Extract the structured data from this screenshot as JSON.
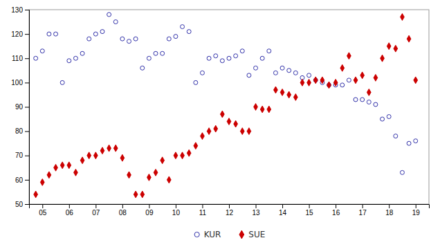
{
  "chart_data": {
    "type": "scatter",
    "x": [
      2004.75,
      2005,
      2005.25,
      2005.5,
      2005.75,
      2006,
      2006.25,
      2006.5,
      2006.75,
      2007,
      2007.25,
      2007.5,
      2007.75,
      2008,
      2008.25,
      2008.5,
      2008.75,
      2009,
      2009.25,
      2009.5,
      2009.75,
      2010,
      2010.25,
      2010.5,
      2010.75,
      2011,
      2011.25,
      2011.5,
      2011.75,
      2012,
      2012.25,
      2012.5,
      2012.75,
      2013,
      2013.25,
      2013.5,
      2013.75,
      2014,
      2014.25,
      2014.5,
      2014.75,
      2015,
      2015.25,
      2015.5,
      2015.75,
      2016,
      2016.25,
      2016.5,
      2016.75,
      2017,
      2017.25,
      2017.5,
      2017.75,
      2018,
      2018.25,
      2018.5,
      2018.75,
      2019
    ],
    "series": [
      {
        "name": "KUR",
        "color": "#3333aa",
        "marker": "circle-open",
        "values": [
          110,
          113,
          120,
          120,
          100,
          109,
          110,
          112,
          118,
          120,
          121,
          128,
          125,
          118,
          117,
          118,
          106,
          110,
          112,
          112,
          118,
          119,
          123,
          121,
          100,
          104,
          110,
          111,
          109,
          110,
          111,
          113,
          103,
          106,
          110,
          113,
          104,
          106,
          105,
          104,
          102,
          103,
          101,
          100,
          99,
          99,
          99,
          101,
          93,
          93,
          92,
          91,
          85,
          86,
          78,
          63,
          75,
          76
        ]
      },
      {
        "name": "SUE",
        "color": "#cc0000",
        "marker": "diamond",
        "values": [
          54,
          59,
          62,
          65,
          66,
          66,
          63,
          68,
          70,
          70,
          72,
          73,
          73,
          69,
          62,
          54,
          54,
          61,
          63,
          68,
          60,
          70,
          70,
          71,
          74,
          78,
          80,
          81,
          87,
          84,
          83,
          80,
          80,
          90,
          89,
          89,
          97,
          96,
          95,
          94,
          100,
          100,
          101,
          101,
          99,
          100,
          106,
          111,
          101,
          103,
          96,
          102,
          110,
          115,
          114,
          127,
          118,
          101
        ]
      }
    ],
    "xlim": [
      2004.5,
      2019.5
    ],
    "xticks": [
      {
        "value": 2005,
        "label": "05"
      },
      {
        "value": 2006,
        "label": "06"
      },
      {
        "value": 2007,
        "label": "07"
      },
      {
        "value": 2008,
        "label": "08"
      },
      {
        "value": 2009,
        "label": "09"
      },
      {
        "value": 2010,
        "label": "10"
      },
      {
        "value": 2011,
        "label": "11"
      },
      {
        "value": 2012,
        "label": "12"
      },
      {
        "value": 2013,
        "label": "13"
      },
      {
        "value": 2014,
        "label": "14"
      },
      {
        "value": 2015,
        "label": "15"
      },
      {
        "value": 2016,
        "label": "16"
      },
      {
        "value": 2017,
        "label": "17"
      },
      {
        "value": 2018,
        "label": "18"
      },
      {
        "value": 2019,
        "label": "19"
      }
    ],
    "ylim": [
      50,
      130
    ],
    "yticks": [
      50,
      60,
      70,
      80,
      90,
      100,
      110,
      120,
      130
    ],
    "grid": false,
    "legend": "bottom"
  }
}
